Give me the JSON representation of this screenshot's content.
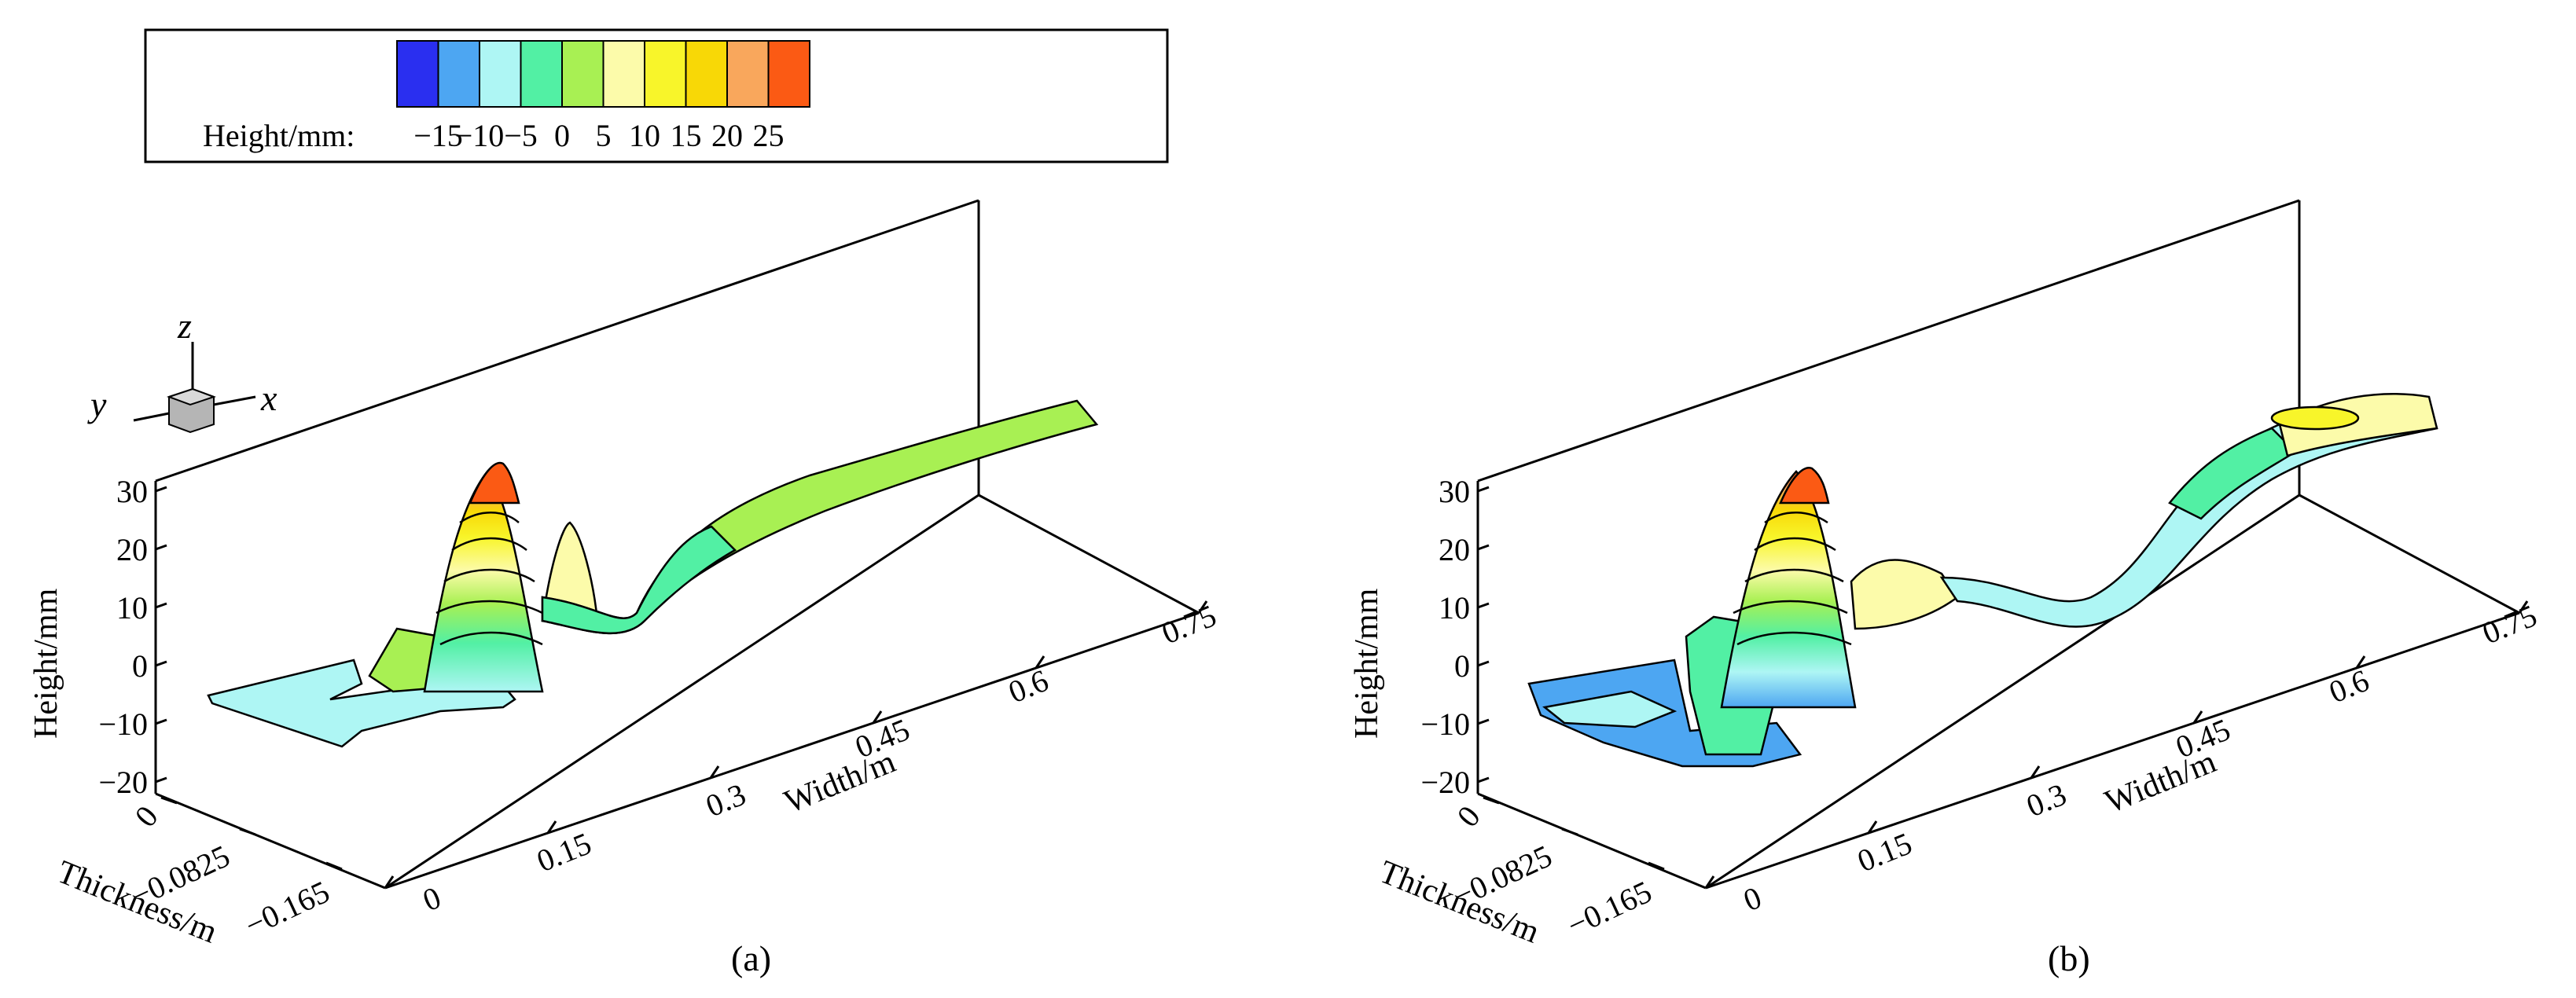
{
  "legend": {
    "label": "Height/mm:",
    "ticks": [
      "−15",
      "−10",
      "−5",
      "0",
      "5",
      "10",
      "15",
      "20",
      "25"
    ],
    "colors": [
      "#2a2ff0",
      "#4da6f2",
      "#aef6f4",
      "#52f0a4",
      "#a8f053",
      "#fcfbaa",
      "#f8f52a",
      "#f8d806",
      "#f9a75c",
      "#fb5a14"
    ]
  },
  "chart_data": [
    {
      "type": "3d-surface",
      "panel_label": "(a)",
      "xlabel": "Width/m",
      "ylabel": "Thickness/m",
      "zlabel": "Height/mm",
      "x_ticks": [
        "0",
        "0.15",
        "0.3",
        "0.45",
        "0.6",
        "0.75"
      ],
      "y_ticks": [
        "0",
        "−0.0825",
        "−0.165"
      ],
      "z_ticks": [
        "30",
        "20",
        "10",
        "0",
        "−10",
        "−20"
      ],
      "xlim": [
        0,
        0.75
      ],
      "ylim": [
        -0.165,
        0
      ],
      "zlim": [
        -20,
        30
      ],
      "axis_triad": {
        "z": "z",
        "y": "y",
        "x": "x"
      },
      "peak_height_mm": 28
    },
    {
      "type": "3d-surface",
      "panel_label": "(b)",
      "xlabel": "Width/m",
      "ylabel": "Thickness/m",
      "zlabel": "Height/mm",
      "x_ticks": [
        "0",
        "0.15",
        "0.3",
        "0.45",
        "0.6",
        "0.75"
      ],
      "y_ticks": [
        "0",
        "−0.0825",
        "−0.165"
      ],
      "z_ticks": [
        "30",
        "20",
        "10",
        "0",
        "−10",
        "−20"
      ],
      "xlim": [
        0,
        0.75
      ],
      "ylim": [
        -0.165,
        0
      ],
      "zlim": [
        -20,
        30
      ],
      "peak_height_mm": 28
    }
  ]
}
